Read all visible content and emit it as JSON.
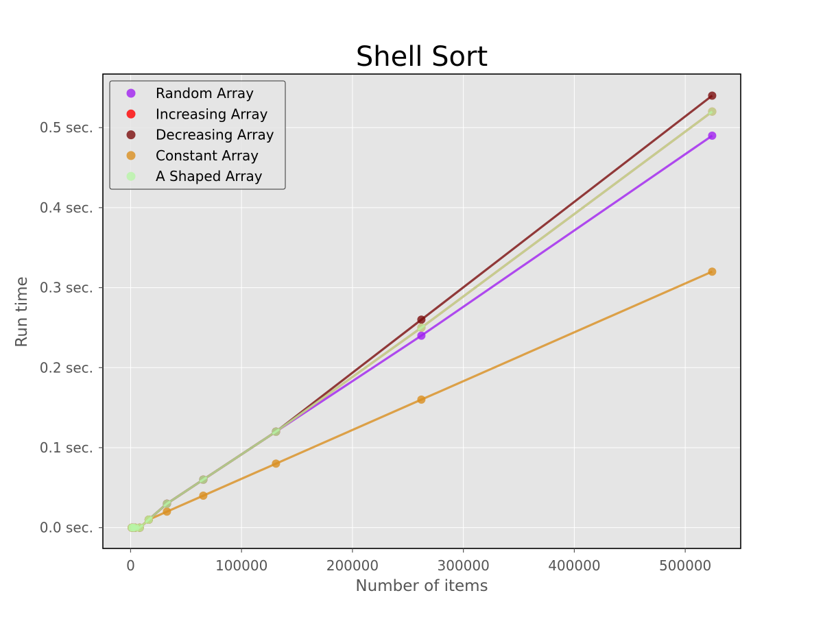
{
  "chart_data": {
    "type": "line",
    "title": "Shell Sort",
    "xlabel": "Number of items",
    "ylabel": "Run time",
    "xlim": [
      -25000,
      550000
    ],
    "ylim": [
      -0.026,
      0.567
    ],
    "xticks": [
      0,
      100000,
      200000,
      300000,
      400000,
      500000
    ],
    "xtick_labels": [
      "0",
      "100000",
      "200000",
      "300000",
      "400000",
      "500000"
    ],
    "yticks": [
      0.0,
      0.1,
      0.2,
      0.3,
      0.4,
      0.5
    ],
    "ytick_labels": [
      "0.0 sec.",
      "0.1 sec.",
      "0.2 sec.",
      "0.3 sec.",
      "0.4 sec.",
      "0.5 sec."
    ],
    "grid": true,
    "legend_position": "top-left",
    "series": [
      {
        "name": "Random Array",
        "color": "#a020f0",
        "x": [
          1024,
          2048,
          4096,
          8192,
          16384,
          32768,
          65536,
          131072,
          262144,
          524288
        ],
        "y": [
          0.0,
          0.0,
          0.0,
          0.0,
          0.01,
          0.03,
          0.06,
          0.12,
          0.24,
          0.49
        ]
      },
      {
        "name": "Increasing Array",
        "color": "#ff0000",
        "x": [
          1024,
          2048,
          4096,
          8192,
          16384,
          32768,
          65536,
          131072,
          262144,
          524288
        ],
        "y": [
          0.0,
          0.0,
          0.0,
          0.0,
          0.01,
          0.03,
          0.06,
          0.12,
          0.25,
          0.52
        ]
      },
      {
        "name": "Decreasing Array",
        "color": "#7b0d0d",
        "x": [
          1024,
          2048,
          4096,
          8192,
          16384,
          32768,
          65536,
          131072,
          262144,
          524288
        ],
        "y": [
          0.0,
          0.0,
          0.0,
          0.0,
          0.01,
          0.03,
          0.06,
          0.12,
          0.26,
          0.54
        ]
      },
      {
        "name": "Constant Array",
        "color": "#d98e1f",
        "x": [
          1024,
          2048,
          4096,
          8192,
          16384,
          32768,
          65536,
          131072,
          262144,
          524288
        ],
        "y": [
          0.0,
          0.0,
          0.0,
          0.0,
          0.01,
          0.02,
          0.04,
          0.08,
          0.16,
          0.32
        ]
      },
      {
        "name": "A Shaped Array",
        "color": "#b8f5a8",
        "x": [
          1024,
          2048,
          4096,
          8192,
          16384,
          32768,
          65536,
          131072,
          262144,
          524288
        ],
        "y": [
          0.0,
          0.0,
          0.0,
          0.0,
          0.01,
          0.03,
          0.06,
          0.12,
          0.25,
          0.52
        ]
      }
    ]
  }
}
